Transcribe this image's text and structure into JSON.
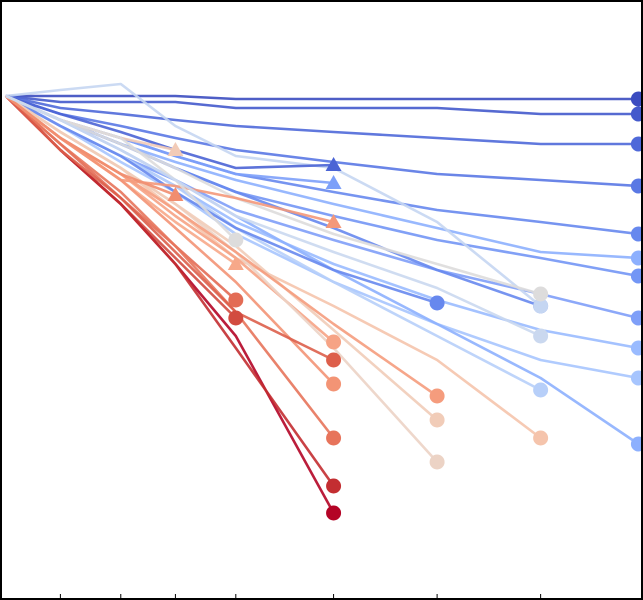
{
  "chart_data": {
    "type": "line",
    "x": [
      0,
      0.95,
      2,
      2.95,
      4,
      5.7,
      7.5,
      9.3,
      11
    ],
    "xlim": [
      -0.1,
      11.08
    ],
    "ylim": [
      0,
      100
    ],
    "xticks": [
      0.95,
      2,
      2.95,
      4,
      5.7,
      7.5,
      9.3
    ],
    "series": [
      {
        "color": "#3b4cc0",
        "marker": "circle",
        "values": [
          84,
          84,
          84,
          84,
          83.5,
          83.5,
          83.5,
          83.5,
          83.5
        ]
      },
      {
        "color": "#445acc",
        "marker": "circle",
        "values": [
          84,
          83,
          83,
          83,
          82,
          82,
          82,
          81,
          81
        ]
      },
      {
        "color": "#4f69d9",
        "marker": "circle",
        "values": [
          84,
          82,
          81,
          80,
          79,
          78,
          77,
          76,
          76
        ]
      },
      {
        "color": "#5a78e4",
        "marker": "circle",
        "values": [
          84,
          81,
          79,
          77,
          75,
          73,
          71,
          70,
          69
        ]
      },
      {
        "color": "#6788ee",
        "marker": "circle",
        "values": [
          84,
          80,
          77,
          74,
          71,
          68,
          65,
          63,
          61
        ]
      },
      {
        "color": "#7396f5",
        "marker": "circle",
        "values": [
          84,
          80,
          76,
          72,
          68,
          64,
          60,
          57,
          54
        ]
      },
      {
        "color": "#7f9ff8",
        "marker": "circle",
        "values": [
          84,
          79,
          74,
          70,
          65,
          60,
          55,
          51,
          47
        ]
      },
      {
        "color": "#8db0fe",
        "marker": "circle",
        "values": [
          84,
          80,
          76,
          73,
          70,
          66,
          62,
          58,
          57
        ]
      },
      {
        "color": "#9abbff",
        "marker": "circle",
        "values": [
          84,
          79,
          74,
          69,
          63,
          56,
          50,
          45,
          42
        ]
      },
      {
        "color": "#a7c5fe",
        "marker": "circle",
        "values": [
          84,
          79,
          73,
          68,
          61,
          53,
          46,
          40,
          37
        ]
      },
      {
        "color": "#6788ee",
        "marker": "circle",
        "values": [
          84,
          80,
          76,
          72,
          68,
          62,
          55,
          49,
          null
        ]
      },
      {
        "color": "#8db0fe",
        "marker": "circle",
        "values": [
          84,
          80,
          75,
          70,
          64,
          55,
          46,
          37,
          26
        ]
      },
      {
        "color": "#b7cff9",
        "marker": "circle",
        "values": [
          84,
          79,
          74,
          69,
          62,
          53,
          44,
          35,
          null
        ]
      },
      {
        "color": "#c5d6f2",
        "marker": "circle",
        "values": [
          84,
          85,
          86,
          79,
          74,
          72,
          63,
          49,
          null
        ]
      },
      {
        "color": "#4b64d5",
        "marker": "triangle",
        "values": [
          84,
          81,
          78,
          75,
          72,
          72.5,
          null,
          null,
          null
        ]
      },
      {
        "color": "#7da0f9",
        "marker": "triangle",
        "values": [
          84,
          80,
          77,
          74,
          71,
          69.5,
          null,
          null,
          null
        ]
      },
      {
        "color": "#6788ee",
        "marker": "circle",
        "values": [
          84,
          79,
          74,
          68,
          62,
          55,
          49.5,
          null,
          null
        ]
      },
      {
        "color": "#dddcdc",
        "marker": "circle",
        "values": [
          84,
          80,
          76,
          72,
          67,
          61,
          56,
          51,
          null
        ]
      },
      {
        "color": "#f5c4ac",
        "marker": "circle",
        "values": [
          84,
          78,
          72,
          65,
          57,
          49,
          40,
          27,
          null
        ]
      },
      {
        "color": "#f4987a",
        "marker": "triangle",
        "values": [
          84,
          77,
          70,
          69,
          67,
          63,
          null,
          null,
          null
        ]
      },
      {
        "color": "#f7a889",
        "marker": "triangle",
        "values": [
          84,
          77,
          70,
          63,
          56,
          null,
          null,
          null,
          null
        ]
      },
      {
        "color": "#e36c55",
        "marker": "circle",
        "values": [
          84,
          76,
          67,
          59,
          50,
          null,
          null,
          null,
          null
        ]
      },
      {
        "color": "#d24b40",
        "marker": "circle",
        "values": [
          84,
          75,
          66,
          57,
          47,
          null,
          null,
          null,
          null
        ]
      },
      {
        "color": "#b40426",
        "marker": "circle",
        "values": [
          84,
          75,
          66,
          56,
          44,
          14.5,
          null,
          null,
          null
        ]
      },
      {
        "color": "#c32e31",
        "marker": "circle",
        "values": [
          84,
          75,
          66,
          56,
          42,
          19,
          null,
          null,
          null
        ]
      },
      {
        "color": "#e7745b",
        "marker": "circle",
        "values": [
          84,
          76,
          68,
          59,
          48,
          27,
          null,
          null,
          null
        ]
      },
      {
        "color": "#f39475",
        "marker": "circle",
        "values": [
          84,
          77,
          70,
          62,
          53,
          36,
          null,
          null,
          null
        ]
      },
      {
        "color": "#f6a385",
        "marker": "circle",
        "values": [
          84,
          77,
          71,
          64,
          57,
          43,
          null,
          null,
          null
        ]
      },
      {
        "color": "#dd5f4b",
        "marker": "circle",
        "values": [
          84,
          75,
          67,
          58,
          48,
          40,
          null,
          null,
          null
        ]
      },
      {
        "color": "#ecd3c5",
        "marker": "circle",
        "values": [
          84,
          78,
          72,
          66,
          58,
          42,
          23,
          null,
          null
        ]
      },
      {
        "color": "#f1ccb8",
        "marker": "circle",
        "values": [
          84,
          78,
          72,
          66,
          59,
          45,
          30,
          null,
          null
        ]
      },
      {
        "color": "#f59c7d",
        "marker": "circle",
        "values": [
          84,
          77,
          71,
          65,
          58,
          46,
          34,
          null,
          null
        ]
      },
      {
        "color": "#f2cbb7",
        "marker": "triangle",
        "values": [
          84,
          80,
          77,
          75,
          null,
          null,
          null,
          null,
          null
        ]
      },
      {
        "color": "#f18d6f",
        "marker": "triangle",
        "values": [
          84,
          77,
          71,
          67.5,
          null,
          null,
          null,
          null,
          null
        ]
      },
      {
        "color": "#dddcdc",
        "marker": "circle",
        "values": [
          84,
          80,
          77,
          70,
          60,
          null,
          null,
          null,
          null
        ]
      },
      {
        "color": "#cad8ef",
        "marker": "circle",
        "values": [
          84,
          80,
          75,
          70,
          64,
          58,
          52,
          44,
          null
        ]
      }
    ]
  }
}
